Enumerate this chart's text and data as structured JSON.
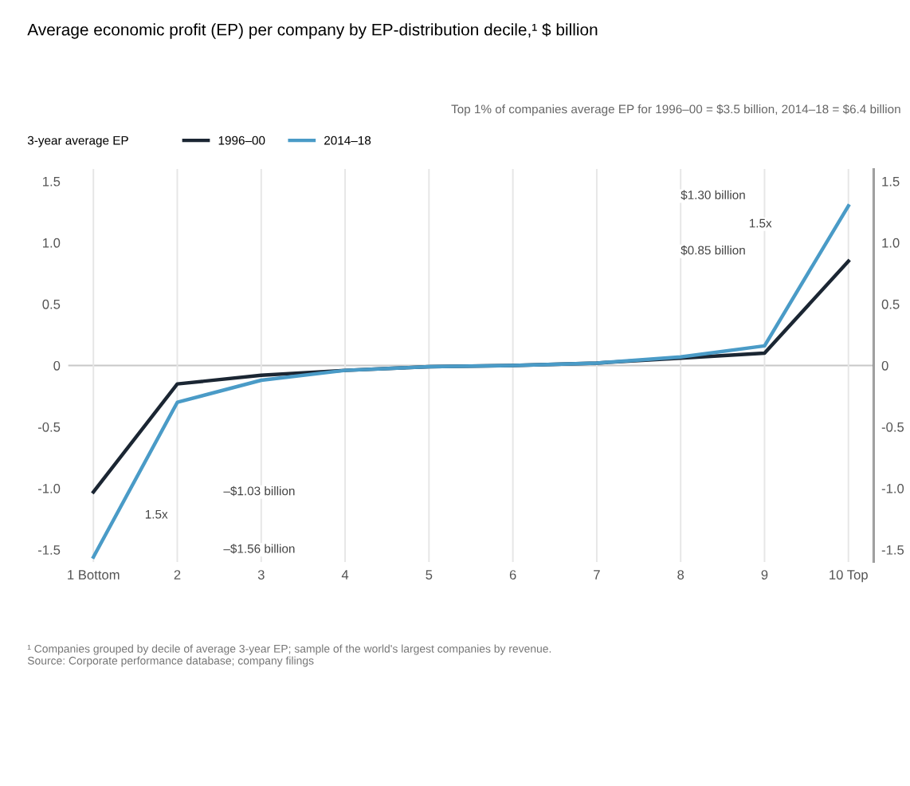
{
  "chart_data": {
    "type": "line",
    "title": "Average economic profit (EP) per company by EP-distribution decile,¹ $ billion",
    "legend_title": "3-year average EP",
    "categories": [
      "1 Bottom",
      "2",
      "3",
      "4",
      "5",
      "6",
      "7",
      "8",
      "9",
      "10 Top"
    ],
    "series": [
      {
        "name": "1996–00",
        "color": "#1b2633",
        "values": [
          -1.03,
          -0.15,
          -0.08,
          -0.04,
          -0.01,
          0.0,
          0.02,
          0.06,
          0.1,
          0.85
        ]
      },
      {
        "name": "2014–18",
        "color": "#4a9bc7",
        "values": [
          -1.56,
          -0.3,
          -0.12,
          -0.04,
          -0.01,
          0.0,
          0.02,
          0.07,
          0.16,
          1.3
        ]
      }
    ],
    "ylim": [
      -1.6,
      1.6
    ],
    "yticks": [
      -1.5,
      {
        "value": -1,
        "label": "-1.0"
      },
      -0.5,
      0,
      0.5,
      {
        "value": 1,
        "label": "1.0"
      },
      1.5
    ],
    "y2lim": [
      -1.6,
      1.6
    ],
    "y2ticks": [
      -1.5,
      {
        "value": -1,
        "label": "-1.0"
      },
      -0.5,
      0,
      0.5,
      {
        "value": 1,
        "label": "1.0"
      },
      1.5
    ],
    "ref_lines": [
      {
        "axis": "y",
        "value": 0,
        "color": "#c8c8c8"
      }
    ],
    "grid": "x",
    "legend": "top left",
    "marker": "none",
    "line_style": "solid",
    "annotations": [
      "$1.30 billion",
      "$0.85 billion",
      "1.5x",
      "–$1.03 billion",
      "–$1.56 billion",
      "1.5x",
      "Top 1% of companies average EP for 1996–00 = $3.5 billion, 2014–18 = $6.4 billion",
      "¹ Companies grouped by decile of average 3-year EP; sample of the world's largest companies by revenue.",
      "Source: Corporate performance database; company filings"
    ]
  }
}
